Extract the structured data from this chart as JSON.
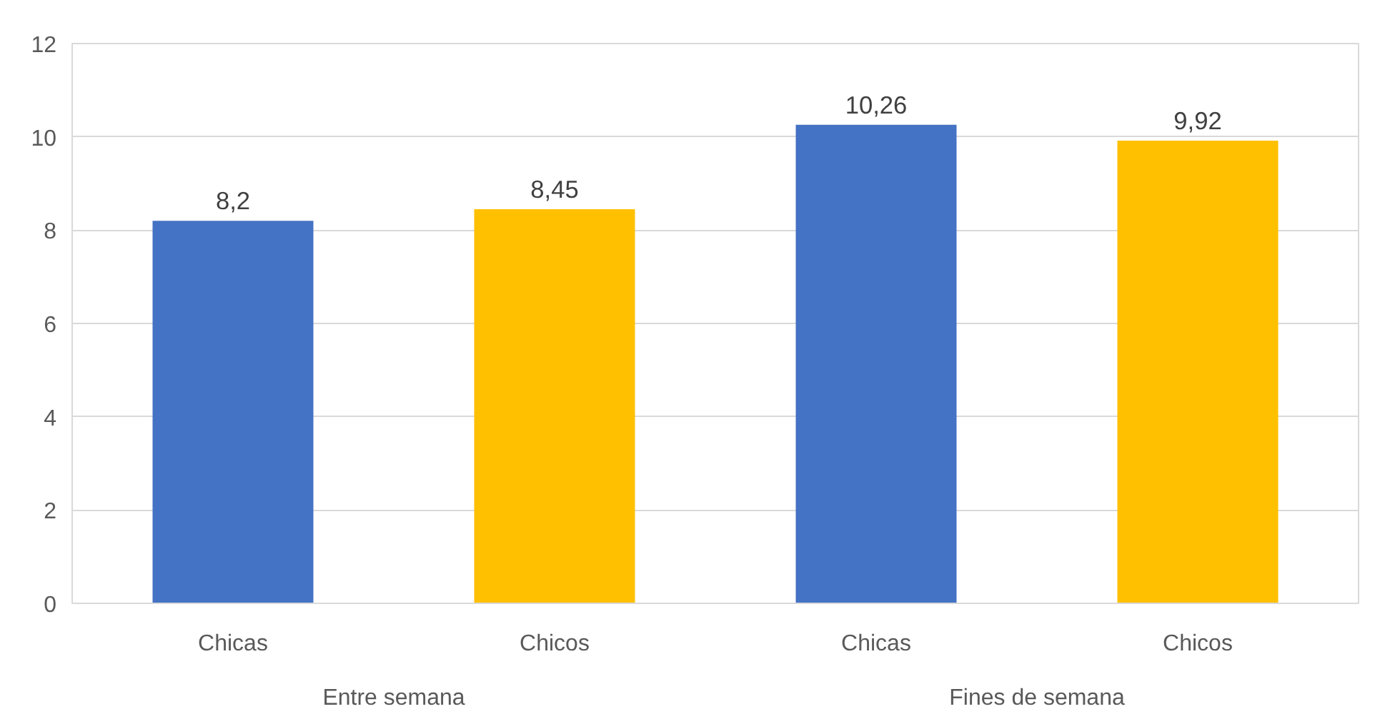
{
  "chart_data": {
    "type": "bar",
    "categories": [
      "Chicas",
      "Chicos",
      "Chicas",
      "Chicos"
    ],
    "values": [
      8.2,
      8.45,
      10.26,
      9.92
    ],
    "colors": [
      "#4472c4",
      "#ffc000",
      "#4472c4",
      "#ffc000"
    ],
    "value_labels": [
      "8,2",
      "8,45",
      "10,26",
      "9,92"
    ],
    "annotations": [
      "Entre semana",
      "Fines de semana"
    ],
    "ylim": [
      0,
      12
    ],
    "yticks": [
      0,
      2,
      4,
      6,
      8,
      10,
      12
    ],
    "grid": "y"
  }
}
